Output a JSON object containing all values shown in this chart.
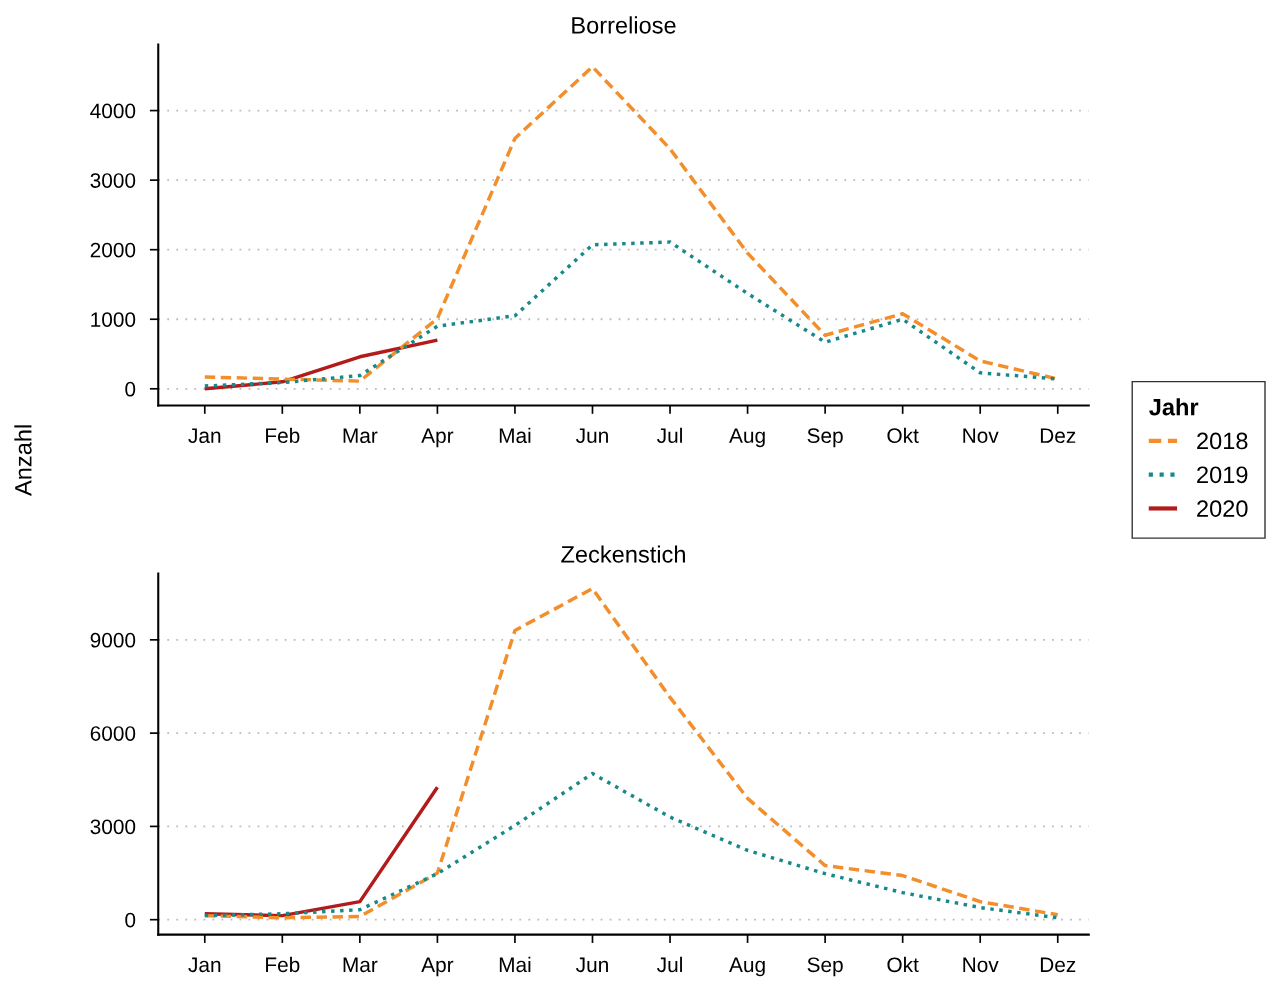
{
  "chart_data": [
    {
      "type": "line",
      "title": "Borreliose",
      "ylabel": "Anzahl",
      "legend_title": "Jahr",
      "legend": "right",
      "grid": "y",
      "categories": [
        "Jan",
        "Feb",
        "Mar",
        "Apr",
        "Mai",
        "Jun",
        "Jul",
        "Aug",
        "Sep",
        "Okt",
        "Nov",
        "Dez"
      ],
      "ylim": [
        -240,
        4950
      ],
      "yticks": [
        0,
        1000,
        2000,
        3000,
        4000
      ],
      "series": [
        {
          "name": "2018",
          "color": "#f28e2b",
          "line_style": "dashed",
          "values": [
            170,
            140,
            110,
            1010,
            3600,
            4630,
            3450,
            1950,
            770,
            1080,
            400,
            140
          ]
        },
        {
          "name": "2019",
          "color": "#17898a",
          "line_style": "dotted",
          "values": [
            40,
            90,
            190,
            900,
            1050,
            2070,
            2110,
            1370,
            670,
            1000,
            230,
            140
          ]
        },
        {
          "name": "2020",
          "color": "#b31b1b",
          "line_style": "solid",
          "values": [
            0,
            100,
            460,
            700,
            null,
            null,
            null,
            null,
            null,
            null,
            null,
            null
          ]
        }
      ]
    },
    {
      "type": "line",
      "title": "Zeckenstich",
      "grid": "y",
      "categories": [
        "Jan",
        "Feb",
        "Mar",
        "Apr",
        "Mai",
        "Jun",
        "Jul",
        "Aug",
        "Sep",
        "Okt",
        "Nov",
        "Dez"
      ],
      "ylim": [
        -480,
        11130
      ],
      "yticks": [
        0,
        3000,
        6000,
        9000
      ],
      "series": [
        {
          "name": "2018",
          "color": "#f28e2b",
          "line_style": "dashed",
          "values": [
            130,
            60,
            100,
            1500,
            9300,
            10650,
            7150,
            3900,
            1740,
            1420,
            580,
            160
          ]
        },
        {
          "name": "2019",
          "color": "#17898a",
          "line_style": "dotted",
          "values": [
            130,
            190,
            320,
            1480,
            3030,
            4700,
            3300,
            2230,
            1480,
            870,
            390,
            60
          ]
        },
        {
          "name": "2020",
          "color": "#b31b1b",
          "line_style": "solid",
          "values": [
            190,
            130,
            580,
            4260,
            null,
            null,
            null,
            null,
            null,
            null,
            null,
            null
          ]
        }
      ]
    }
  ]
}
